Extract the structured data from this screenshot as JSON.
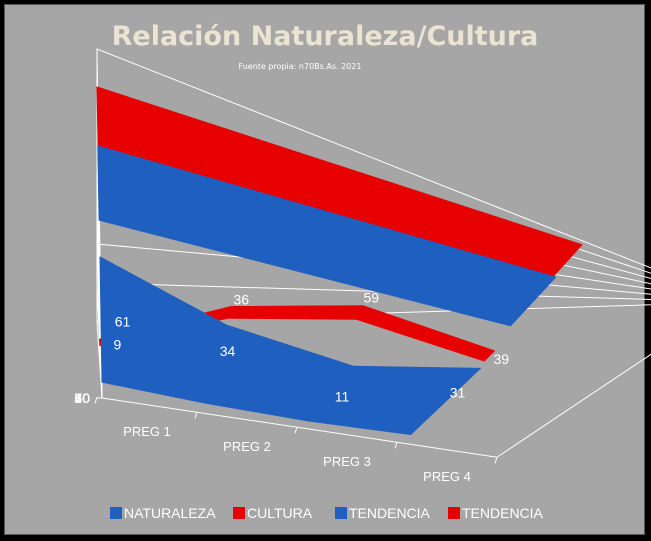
{
  "chart_data": {
    "type": "line",
    "style": "3d",
    "title": "Relación Naturaleza/Cultura",
    "subtitle": "Fuente propia: n70Bs.As. 2021",
    "categories": [
      "PREG 1",
      "PREG 2",
      "PREG 3",
      "PREG 4"
    ],
    "y_ticks": [
      "0",
      "10",
      "20",
      "30",
      "40",
      "50",
      "60",
      "70"
    ],
    "ylim": [
      0,
      70
    ],
    "grid": true,
    "legend_position": "bottom",
    "series": [
      {
        "name": "NATURALEZA",
        "color": "#1f5fbf",
        "values": [
          61,
          34,
          11,
          31
        ],
        "labels": [
          "61",
          "34",
          "11",
          "31"
        ]
      },
      {
        "name": "CULTURA",
        "color": "#e60000",
        "values": [
          9,
          36,
          59,
          39
        ],
        "labels": [
          "9",
          "36",
          "59",
          "39"
        ]
      },
      {
        "name": "TENDENCIA",
        "color": "#1f5fbf",
        "values": [
          54,
          54,
          54,
          54
        ]
      },
      {
        "name": "TENDENCIA",
        "color": "#e60000",
        "values": [
          58,
          58,
          58,
          58
        ]
      }
    ]
  }
}
